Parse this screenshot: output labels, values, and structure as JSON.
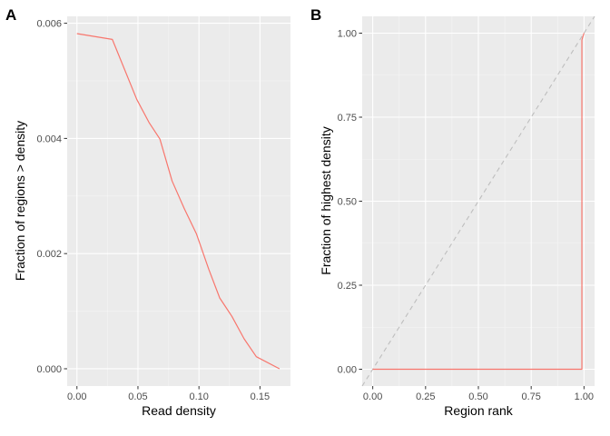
{
  "chart_data": [
    {
      "panel": "A",
      "type": "line",
      "title": "",
      "xlabel": "Read density",
      "ylabel": "Fraction of regions > density",
      "xlim": [
        -0.008,
        0.175
      ],
      "ylim": [
        -0.0003,
        0.00612
      ],
      "xticks": [
        0.0,
        0.05,
        0.1,
        0.15
      ],
      "xtick_labels": [
        "0.00",
        "0.05",
        "0.10",
        "0.15"
      ],
      "yticks": [
        0.0,
        0.002,
        0.004,
        0.006
      ],
      "ytick_labels": [
        "0.000",
        "0.002",
        "0.004",
        "0.006"
      ],
      "grid": true,
      "legend": "none",
      "series": [
        {
          "color": "#F8766D",
          "x": [
            0.0,
            0.029,
            0.049,
            0.059,
            0.068,
            0.078,
            0.088,
            0.098,
            0.108,
            0.117,
            0.127,
            0.137,
            0.147,
            0.166
          ],
          "y": [
            0.00582,
            0.00572,
            0.00468,
            0.00428,
            0.00399,
            0.00326,
            0.00278,
            0.00234,
            0.00173,
            0.00123,
            0.00091,
            0.00052,
            0.00021,
            0.0
          ]
        }
      ]
    },
    {
      "panel": "B",
      "type": "line",
      "title": "",
      "xlabel": "Region rank",
      "ylabel": "Fraction of highest density",
      "xlim": [
        -0.05,
        1.05
      ],
      "ylim": [
        -0.05,
        1.05
      ],
      "xticks": [
        0.0,
        0.25,
        0.5,
        0.75,
        1.0
      ],
      "xtick_labels": [
        "0.00",
        "0.25",
        "0.50",
        "0.75",
        "1.00"
      ],
      "yticks": [
        0.0,
        0.25,
        0.5,
        0.75,
        1.0
      ],
      "ytick_labels": [
        "0.00",
        "0.25",
        "0.50",
        "0.75",
        "1.00"
      ],
      "grid": true,
      "legend": "none",
      "series": [
        {
          "color": "#F8766D",
          "x": [
            0.0,
            0.99,
            0.99,
            1.0
          ],
          "y": [
            0.0,
            0.0,
            0.98,
            1.0
          ]
        }
      ],
      "reference_line": {
        "color": "#BEBEBE",
        "style": "dashed",
        "x": [
          -0.05,
          1.05
        ],
        "y": [
          -0.05,
          1.05
        ]
      }
    }
  ]
}
